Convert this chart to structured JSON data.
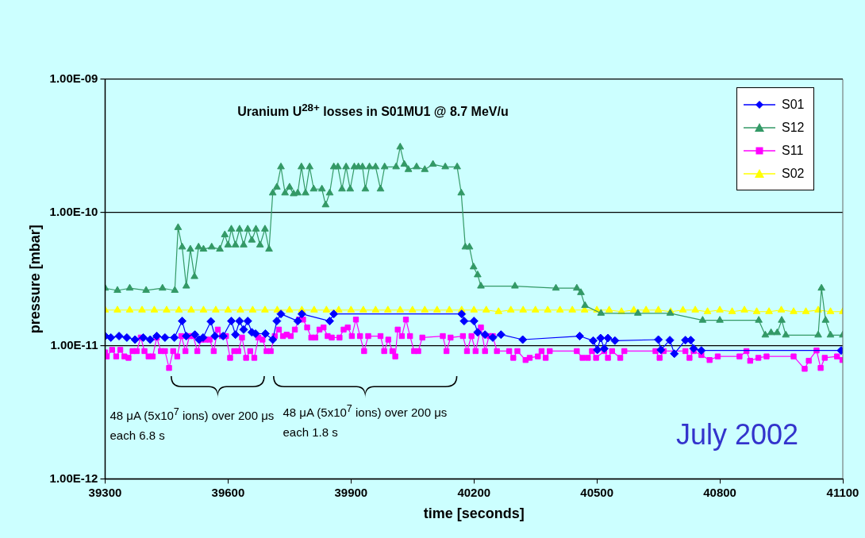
{
  "chart_data": {
    "type": "line",
    "title": "Uranium U$^{28+}$ losses in S01MU1 @ 8.7 MeV/u",
    "xlabel": "time [seconds]",
    "ylabel": "pressure [mbar]",
    "xlim": [
      39300,
      41100
    ],
    "xticks": [
      39300,
      39600,
      39900,
      40200,
      40500,
      40800,
      41100
    ],
    "ylim": [
      1e-12,
      1e-09
    ],
    "yticks": [
      {
        "value": 1e-12,
        "label": "1.00E-12"
      },
      {
        "value": 1e-11,
        "label": "1.00E-11"
      },
      {
        "value": 1e-10,
        "label": "1.00E-10"
      },
      {
        "value": 1e-09,
        "label": "1.00E-09"
      }
    ],
    "log": "y",
    "grid": "y",
    "legend": "top right",
    "line_style": "solid",
    "annotations": [
      "48 μA (5x10$^{7}$ ions) over 200 μs each 6.8 s",
      "48 μA (5x10$^{7}$ ions) over 200 μs each 1.8 s",
      "July 2002"
    ],
    "series": [
      {
        "name": "S01",
        "color": "#0000ff",
        "marker": "diamond",
        "x": [
          39300,
          39314,
          39334,
          39353,
          39373,
          39393,
          39410,
          39426,
          39446,
          39469,
          39488,
          39498,
          39519,
          39529,
          39539,
          39558,
          39568,
          39588,
          39608,
          39618,
          39628,
          39638,
          39648,
          39658,
          39667,
          39691,
          39709,
          39719,
          39729,
          39770,
          39780,
          39848,
          39858,
          40170,
          40176,
          40200,
          40209,
          40227,
          40246,
          40266,
          40319,
          40458,
          40491,
          40501,
          40509,
          40518,
          40527,
          40544,
          40650,
          40656,
          40678,
          40689,
          40716,
          40729,
          40736,
          40755,
          41096
        ],
        "values": [
          1.18e-11,
          1.15e-11,
          1.18e-11,
          1.15e-11,
          1.11e-11,
          1.15e-11,
          1.11e-11,
          1.18e-11,
          1.15e-11,
          1.15e-11,
          1.53e-11,
          1.18e-11,
          1.21e-11,
          1.11e-11,
          1.15e-11,
          1.52e-11,
          1.18e-11,
          1.18e-11,
          1.53e-11,
          1.21e-11,
          1.53e-11,
          1.32e-11,
          1.53e-11,
          1.26e-11,
          1.23e-11,
          1.23e-11,
          1.11e-11,
          1.53e-11,
          1.73e-11,
          1.53e-11,
          1.73e-11,
          1.53e-11,
          1.73e-11,
          1.73e-11,
          1.53e-11,
          1.53e-11,
          1.26e-11,
          1.21e-11,
          1.15e-11,
          1.21e-11,
          1.11e-11,
          1.18e-11,
          1.09e-11,
          9.3e-12,
          1.14e-11,
          9.5e-12,
          1.14e-11,
          1.09e-11,
          1.11e-11,
          9.3e-12,
          1.1e-11,
          8.7e-12,
          1.1e-11,
          1.1e-11,
          9.5e-12,
          9.2e-12,
          9.2e-12
        ]
      },
      {
        "name": "S12",
        "color": "#339966",
        "marker": "triangle",
        "x": [
          39300,
          39330,
          39360,
          39400,
          39440,
          39470,
          39478,
          39488,
          39498,
          39508,
          39518,
          39528,
          39540,
          39560,
          39580,
          39592,
          39600,
          39608,
          39618,
          39628,
          39638,
          39648,
          39658,
          39668,
          39678,
          39690,
          39700,
          39709,
          39719,
          39729,
          39739,
          39750,
          39760,
          39770,
          39779,
          39789,
          39799,
          39809,
          39829,
          39838,
          39848,
          39858,
          39868,
          39878,
          39888,
          39898,
          39908,
          39918,
          39928,
          39935,
          39945,
          39960,
          39972,
          39982,
          40010,
          40020,
          40030,
          40040,
          40060,
          40080,
          40100,
          40130,
          40159,
          40169,
          40179,
          40189,
          40199,
          40209,
          40217,
          40300,
          40400,
          40451,
          40461,
          40471,
          40510,
          40600,
          40679,
          40758,
          40800,
          40895,
          40911,
          40925,
          40940,
          40951,
          40961,
          41040,
          41048,
          41058,
          41070,
          41100
        ],
        "values": [
          2.7e-11,
          2.6e-11,
          2.7e-11,
          2.6e-11,
          2.7e-11,
          2.6e-11,
          7.7e-11,
          5.5e-11,
          2.8e-11,
          5.3e-11,
          3.3e-11,
          5.5e-11,
          5.3e-11,
          5.5e-11,
          5.3e-11,
          6.8e-11,
          5.7e-11,
          7.5e-11,
          5.7e-11,
          7.5e-11,
          5.7e-11,
          7.5e-11,
          6.2e-11,
          7.5e-11,
          5.7e-11,
          7.5e-11,
          5.3e-11,
          1.4e-10,
          1.55e-10,
          2.2e-10,
          1.4e-10,
          1.55e-10,
          1.38e-10,
          1.4e-10,
          2.2e-10,
          1.4e-10,
          2.2e-10,
          1.5e-10,
          1.5e-10,
          1.14e-10,
          1.4e-10,
          2.2e-10,
          2.2e-10,
          1.5e-10,
          2.2e-10,
          1.5e-10,
          2.2e-10,
          2.2e-10,
          2.2e-10,
          1.5e-10,
          2.2e-10,
          2.2e-10,
          1.5e-10,
          2.2e-10,
          2.2e-10,
          3.1e-10,
          2.3e-10,
          2.1e-10,
          2.2e-10,
          2.1e-10,
          2.3e-10,
          2.2e-10,
          2.2e-10,
          1.4e-10,
          5.5e-11,
          5.5e-11,
          3.9e-11,
          3.4e-11,
          2.8e-11,
          2.8e-11,
          2.7e-11,
          2.7e-11,
          2.5e-11,
          2e-11,
          1.75e-11,
          1.75e-11,
          1.75e-11,
          1.55e-11,
          1.55e-11,
          1.55e-11,
          1.2e-11,
          1.25e-11,
          1.25e-11,
          1.55e-11,
          1.2e-11,
          1.2e-11,
          2.7e-11,
          1.55e-11,
          1.2e-11,
          1.2e-11
        ]
      },
      {
        "name": "S11",
        "color": "#ff00ff",
        "marker": "square",
        "x": [
          39300,
          39304,
          39317,
          39327,
          39337,
          39347,
          39357,
          39367,
          39377,
          39387,
          39396,
          39406,
          39416,
          39426,
          39436,
          39446,
          39456,
          39466,
          39476,
          39486,
          39496,
          39506,
          39515,
          39525,
          39535,
          39545,
          39555,
          39565,
          39575,
          39585,
          39595,
          39605,
          39615,
          39625,
          39634,
          39644,
          39654,
          39664,
          39674,
          39684,
          39694,
          39704,
          39714,
          39724,
          39734,
          39743,
          39753,
          39763,
          39773,
          39783,
          39793,
          39803,
          39813,
          39823,
          39833,
          39843,
          39853,
          39872,
          39882,
          39892,
          39902,
          39912,
          39922,
          39932,
          39942,
          39972,
          39981,
          39991,
          40001,
          40008,
          40014,
          40024,
          40034,
          40044,
          40054,
          40064,
          40074,
          40124,
          40133,
          40143,
          40173,
          40183,
          40194,
          40204,
          40217,
          40227,
          40237,
          40246,
          40256,
          40286,
          40296,
          40306,
          40326,
          40336,
          40356,
          40365,
          40375,
          40385,
          40451,
          40465,
          40478,
          40488,
          40498,
          40518,
          40527,
          40537,
          40557,
          40567,
          40643,
          40653,
          40663,
          40716,
          40726,
          40736,
          40755,
          40775,
          40795,
          40848,
          40865,
          40874,
          40894,
          40914,
          40980,
          41007,
          41017,
          41036,
          41046,
          41056,
          41086,
          41099
        ],
        "values": [
          8.9e-12,
          8.3e-12,
          9.3e-12,
          8.3e-12,
          9.3e-12,
          8.3e-12,
          8.1e-12,
          9.1e-12,
          9.1e-12,
          1.15e-11,
          9.1e-12,
          8.3e-12,
          8.3e-12,
          1.15e-11,
          9.1e-12,
          9.1e-12,
          6.8e-12,
          9.1e-12,
          8.3e-12,
          1.18e-11,
          9.1e-12,
          1.18e-11,
          1.18e-11,
          9.1e-12,
          1.11e-11,
          1.11e-11,
          1.11e-11,
          9.1e-12,
          1.32e-11,
          1.18e-11,
          1.18e-11,
          8.1e-12,
          9.1e-12,
          9.1e-12,
          1.15e-11,
          8.1e-12,
          9.1e-12,
          8.1e-12,
          1.15e-11,
          1.11e-11,
          9.1e-12,
          9.1e-12,
          1.18e-11,
          1.32e-11,
          1.18e-11,
          1.21e-11,
          1.18e-11,
          1.32e-11,
          1.57e-11,
          1.57e-11,
          1.37e-11,
          1.15e-11,
          1.15e-11,
          1.32e-11,
          1.37e-11,
          1.18e-11,
          1.15e-11,
          1.15e-11,
          1.32e-11,
          1.37e-11,
          1.18e-11,
          1.57e-11,
          1.18e-11,
          9.1e-12,
          1.18e-11,
          1.18e-11,
          9.1e-12,
          1.11e-11,
          9.1e-12,
          8.3e-12,
          1.32e-11,
          1.18e-11,
          1.57e-11,
          1.18e-11,
          9.1e-12,
          9.1e-12,
          1.15e-11,
          1.18e-11,
          9.1e-12,
          1.15e-11,
          1.18e-11,
          9.1e-12,
          1.18e-11,
          9.1e-12,
          1.37e-11,
          9.1e-12,
          1.18e-11,
          1.18e-11,
          9.1e-12,
          9.1e-12,
          8.1e-12,
          9.1e-12,
          7.8e-12,
          8.1e-12,
          8.3e-12,
          9.1e-12,
          8.1e-12,
          9.1e-12,
          9.1e-12,
          8.1e-12,
          8.1e-12,
          9.1e-12,
          8.1e-12,
          9.1e-12,
          8.1e-12,
          9.1e-12,
          8.1e-12,
          9.1e-12,
          9.1e-12,
          8.1e-12,
          9.1e-12,
          9.1e-12,
          8.1e-12,
          9.1e-12,
          8.5e-12,
          7.8e-12,
          8.3e-12,
          8.3e-12,
          9.1e-12,
          7.7e-12,
          8.1e-12,
          8.3e-12,
          8.3e-12,
          6.7e-12,
          7.7e-12,
          9.2e-12,
          6.8e-12,
          8.1e-12,
          8.3e-12,
          7.8e-12
        ]
      },
      {
        "name": "S02",
        "color": "#ffff00",
        "marker": "triangle",
        "x": [
          39300,
          39330,
          39360,
          39390,
          39420,
          39450,
          39480,
          39510,
          39540,
          39570,
          39600,
          39630,
          39660,
          39690,
          39720,
          39750,
          39780,
          39810,
          39840,
          39870,
          39900,
          39930,
          39960,
          39990,
          40020,
          40050,
          40080,
          40110,
          40140,
          40170,
          40200,
          40230,
          40260,
          40290,
          40320,
          40350,
          40380,
          40410,
          40440,
          40470,
          40500,
          40530,
          40560,
          40590,
          40620,
          40650,
          40680,
          40710,
          40740,
          40770,
          40800,
          40830,
          40860,
          40890,
          40920,
          40950,
          40980,
          41010,
          41040,
          41070,
          41100
        ],
        "values": [
          1.85e-11,
          1.85e-11,
          1.85e-11,
          1.85e-11,
          1.85e-11,
          1.85e-11,
          1.85e-11,
          1.85e-11,
          1.85e-11,
          1.85e-11,
          1.85e-11,
          1.85e-11,
          1.85e-11,
          1.85e-11,
          1.85e-11,
          1.85e-11,
          1.85e-11,
          1.85e-11,
          1.85e-11,
          1.85e-11,
          1.85e-11,
          1.85e-11,
          1.85e-11,
          1.85e-11,
          1.85e-11,
          1.85e-11,
          1.85e-11,
          1.85e-11,
          1.85e-11,
          1.85e-11,
          1.85e-11,
          1.85e-11,
          1.8e-11,
          1.85e-11,
          1.85e-11,
          1.85e-11,
          1.85e-11,
          1.85e-11,
          1.85e-11,
          1.85e-11,
          1.85e-11,
          1.85e-11,
          1.8e-11,
          1.85e-11,
          1.85e-11,
          1.85e-11,
          1.8e-11,
          1.85e-11,
          1.85e-11,
          1.8e-11,
          1.85e-11,
          1.8e-11,
          1.85e-11,
          1.8e-11,
          1.8e-11,
          1.85e-11,
          1.8e-11,
          1.8e-11,
          1.85e-11,
          1.8e-11,
          1.8e-11
        ]
      }
    ]
  }
}
